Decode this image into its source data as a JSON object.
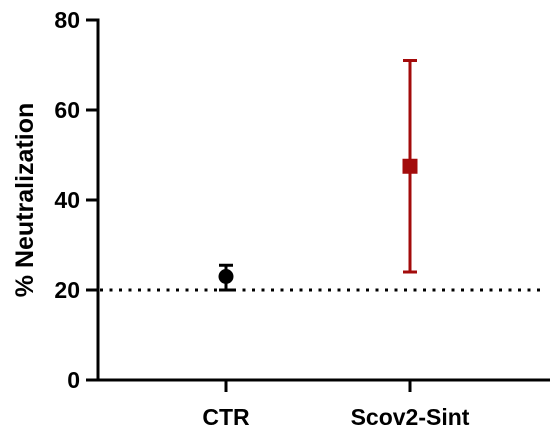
{
  "chart_data": {
    "type": "scatter",
    "title": "",
    "xlabel": "",
    "ylabel": "% Neutralization",
    "ylim": [
      0,
      80
    ],
    "yticks": [
      0,
      20,
      40,
      60,
      80
    ],
    "categories": [
      "CTR",
      "Scov2-Sint"
    ],
    "points": [
      {
        "category": "CTR",
        "mean": 23,
        "lower": 20,
        "upper": 25.5,
        "marker": "circle",
        "color": "#000000"
      },
      {
        "category": "Scov2-Sint",
        "mean": 47.5,
        "lower": 24,
        "upper": 71,
        "marker": "square",
        "color": "#a30b0b"
      }
    ],
    "reference_line": {
      "y": 20,
      "style": "dotted",
      "color": "#000000"
    },
    "grid": false,
    "legend": "none"
  }
}
